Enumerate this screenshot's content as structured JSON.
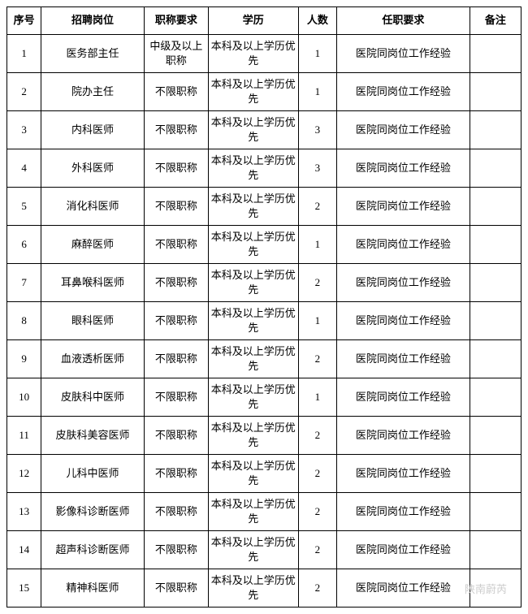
{
  "table": {
    "columns": [
      {
        "label": "序号",
        "class": "col-seq"
      },
      {
        "label": "招聘岗位",
        "class": "col-position"
      },
      {
        "label": "职称要求",
        "class": "col-title"
      },
      {
        "label": "学历",
        "class": "col-edu"
      },
      {
        "label": "人数",
        "class": "col-count"
      },
      {
        "label": "任职要求",
        "class": "col-req"
      },
      {
        "label": "备注",
        "class": "col-note"
      }
    ],
    "rows": [
      {
        "seq": "1",
        "position": "医务部主任",
        "title": "中级及以上职称",
        "edu": "本科及以上学历优先",
        "count": "1",
        "req": "医院同岗位工作经验",
        "note": ""
      },
      {
        "seq": "2",
        "position": "院办主任",
        "title": "不限职称",
        "edu": "本科及以上学历优先",
        "count": "1",
        "req": "医院同岗位工作经验",
        "note": ""
      },
      {
        "seq": "3",
        "position": "内科医师",
        "title": "不限职称",
        "edu": "本科及以上学历优先",
        "count": "3",
        "req": "医院同岗位工作经验",
        "note": ""
      },
      {
        "seq": "4",
        "position": "外科医师",
        "title": "不限职称",
        "edu": "本科及以上学历优先",
        "count": "3",
        "req": "医院同岗位工作经验",
        "note": ""
      },
      {
        "seq": "5",
        "position": "消化科医师",
        "title": "不限职称",
        "edu": "本科及以上学历优先",
        "count": "2",
        "req": "医院同岗位工作经验",
        "note": ""
      },
      {
        "seq": "6",
        "position": "麻醉医师",
        "title": "不限职称",
        "edu": "本科及以上学历优先",
        "count": "1",
        "req": "医院同岗位工作经验",
        "note": ""
      },
      {
        "seq": "7",
        "position": "耳鼻喉科医师",
        "title": "不限职称",
        "edu": "本科及以上学历优先",
        "count": "2",
        "req": "医院同岗位工作经验",
        "note": ""
      },
      {
        "seq": "8",
        "position": "眼科医师",
        "title": "不限职称",
        "edu": "本科及以上学历优先",
        "count": "1",
        "req": "医院同岗位工作经验",
        "note": ""
      },
      {
        "seq": "9",
        "position": "血液透析医师",
        "title": "不限职称",
        "edu": "本科及以上学历优先",
        "count": "2",
        "req": "医院同岗位工作经验",
        "note": ""
      },
      {
        "seq": "10",
        "position": "皮肤科中医师",
        "title": "不限职称",
        "edu": "本科及以上学历优先",
        "count": "1",
        "req": "医院同岗位工作经验",
        "note": ""
      },
      {
        "seq": "11",
        "position": "皮肤科美容医师",
        "title": "不限职称",
        "edu": "本科及以上学历优先",
        "count": "2",
        "req": "医院同岗位工作经验",
        "note": ""
      },
      {
        "seq": "12",
        "position": "儿科中医师",
        "title": "不限职称",
        "edu": "本科及以上学历优先",
        "count": "2",
        "req": "医院同岗位工作经验",
        "note": ""
      },
      {
        "seq": "13",
        "position": "影像科诊断医师",
        "title": "不限职称",
        "edu": "本科及以上学历优先",
        "count": "2",
        "req": "医院同岗位工作经验",
        "note": ""
      },
      {
        "seq": "14",
        "position": "超声科诊断医师",
        "title": "不限职称",
        "edu": "本科及以上学历优先",
        "count": "2",
        "req": "医院同岗位工作经验",
        "note": ""
      },
      {
        "seq": "15",
        "position": "精神科医师",
        "title": "不限职称",
        "edu": "本科及以上学历优先",
        "count": "2",
        "req": "医院同岗位工作经验",
        "note": ""
      }
    ]
  },
  "watermark": "陕南蔚芮"
}
